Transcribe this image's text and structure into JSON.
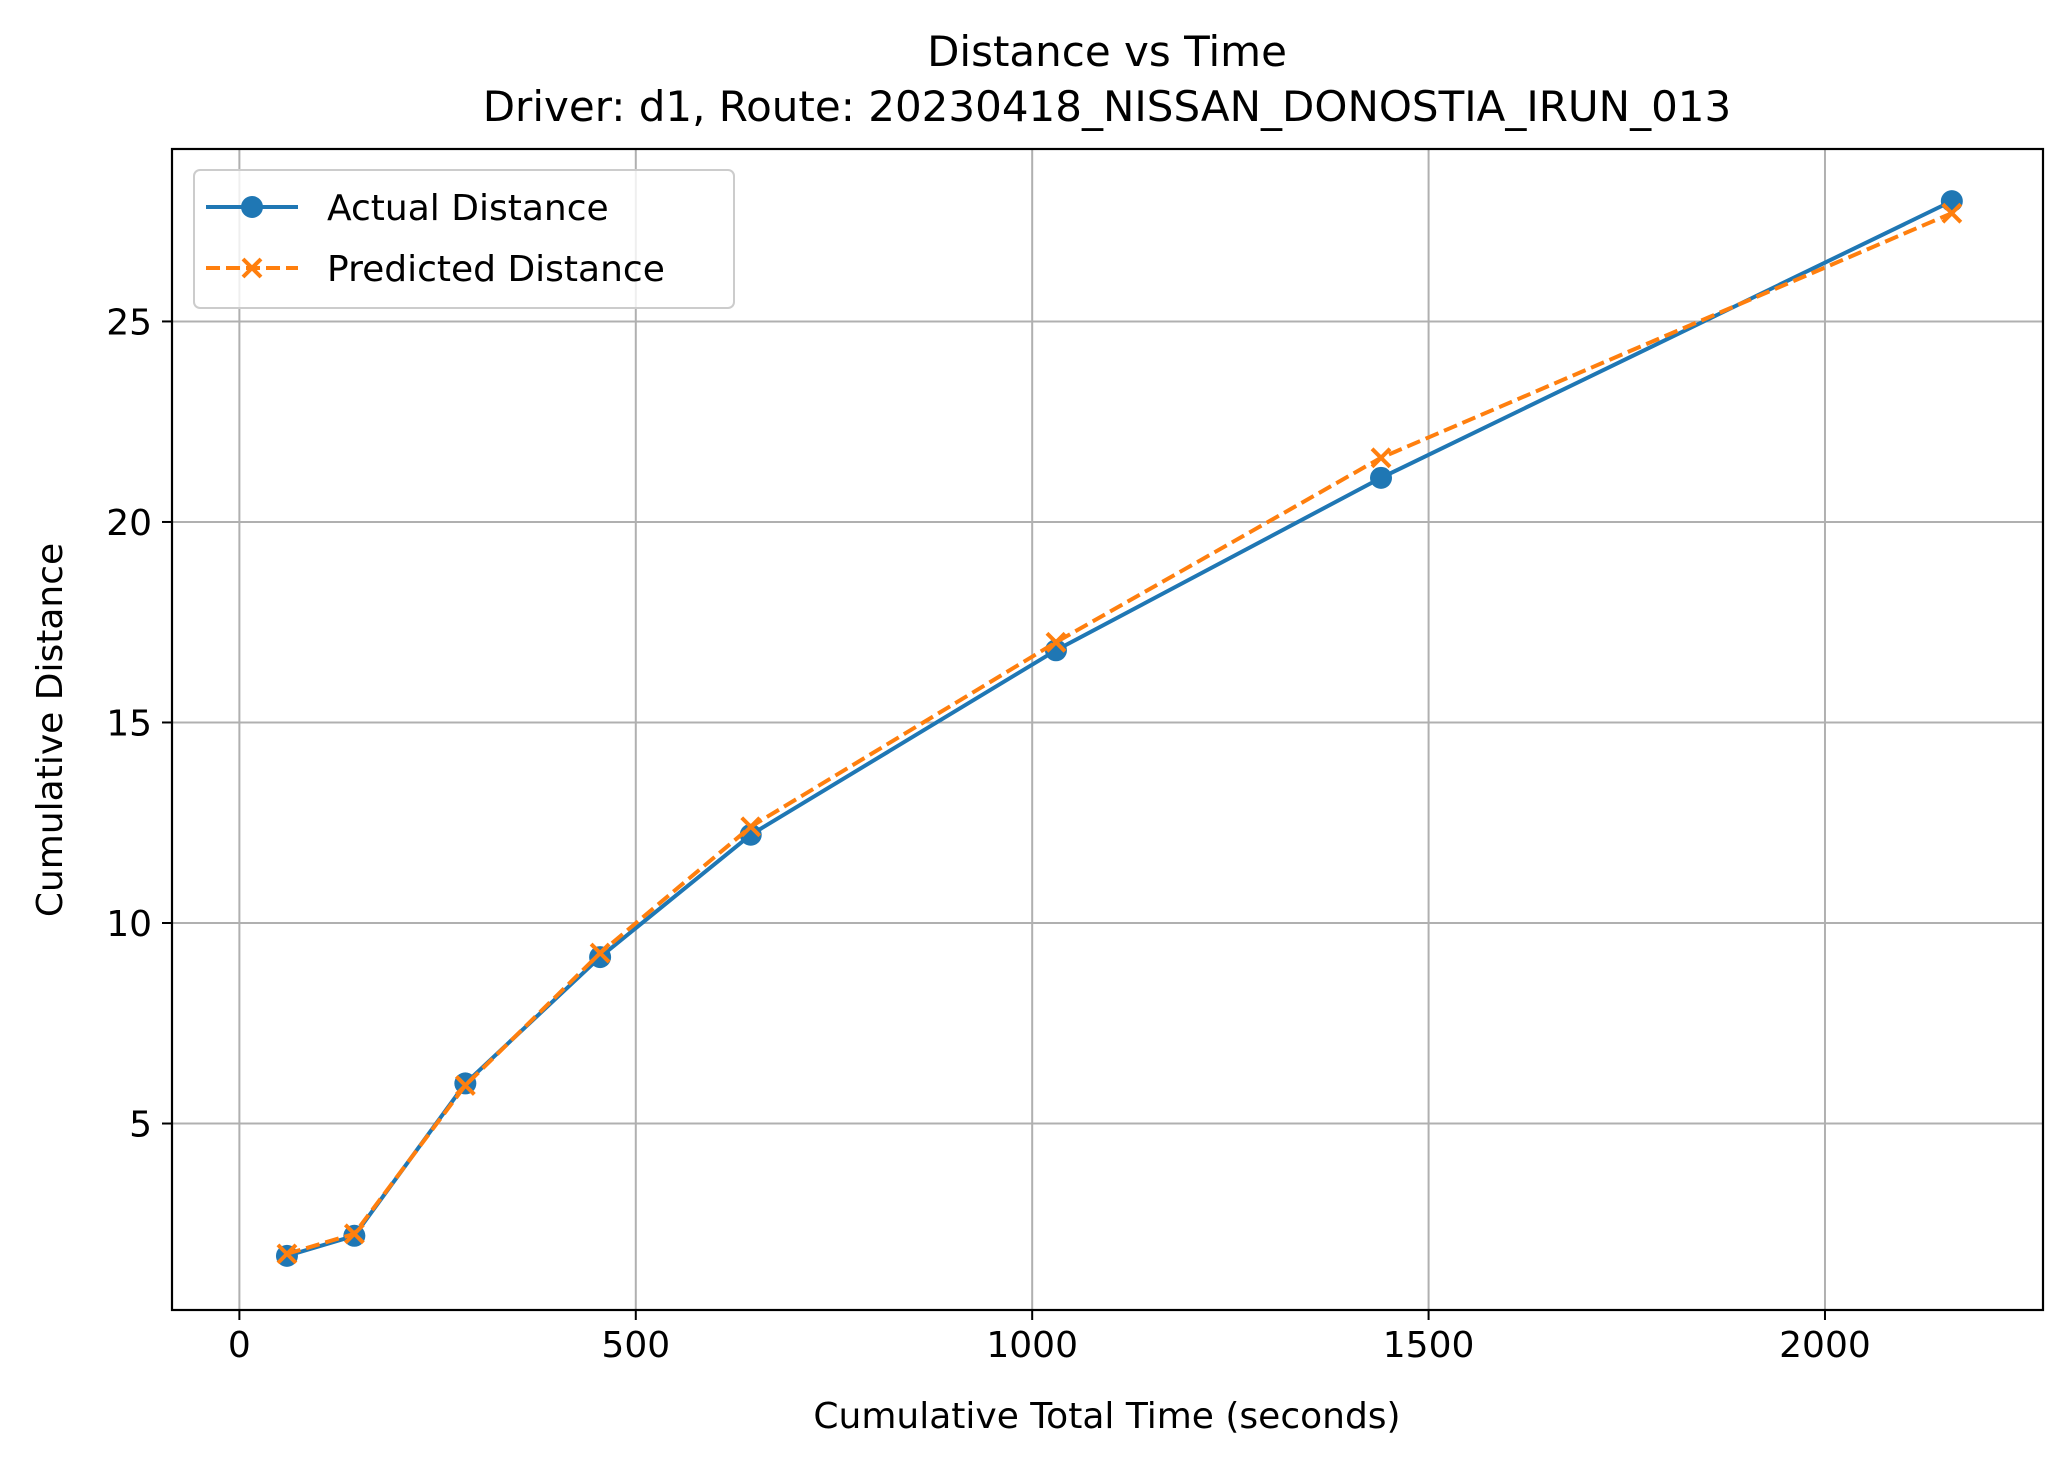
{
  "chart_data": {
    "type": "line",
    "title": "Distance vs Time",
    "subtitle": "Driver: d1, Route: 20230418_NISSAN_DONOSTIA_IRUN_013",
    "xlabel": "Cumulative Total Time (seconds)",
    "ylabel": "Cumulative Distance",
    "xlim": [
      -85,
      2275
    ],
    "ylim": [
      0.35,
      29.3
    ],
    "xticks": [
      0,
      500,
      1000,
      1500,
      2000
    ],
    "yticks": [
      5,
      10,
      15,
      20,
      25
    ],
    "grid": true,
    "legend_position": "top-left",
    "series": [
      {
        "name": "Actual Distance",
        "color": "#1f77b4",
        "style": "solid",
        "marker": "circle",
        "x": [
          60,
          145,
          285,
          455,
          645,
          1030,
          1440,
          2160
        ],
        "y": [
          1.7,
          2.2,
          6.0,
          9.15,
          12.2,
          16.8,
          21.1,
          28.0
        ]
      },
      {
        "name": "Predicted Distance",
        "color": "#ff7f0e",
        "style": "dashed",
        "marker": "x",
        "x": [
          60,
          145,
          285,
          455,
          645,
          1030,
          1440,
          2160
        ],
        "y": [
          1.75,
          2.25,
          5.95,
          9.25,
          12.4,
          17.0,
          21.6,
          27.7
        ]
      }
    ]
  }
}
